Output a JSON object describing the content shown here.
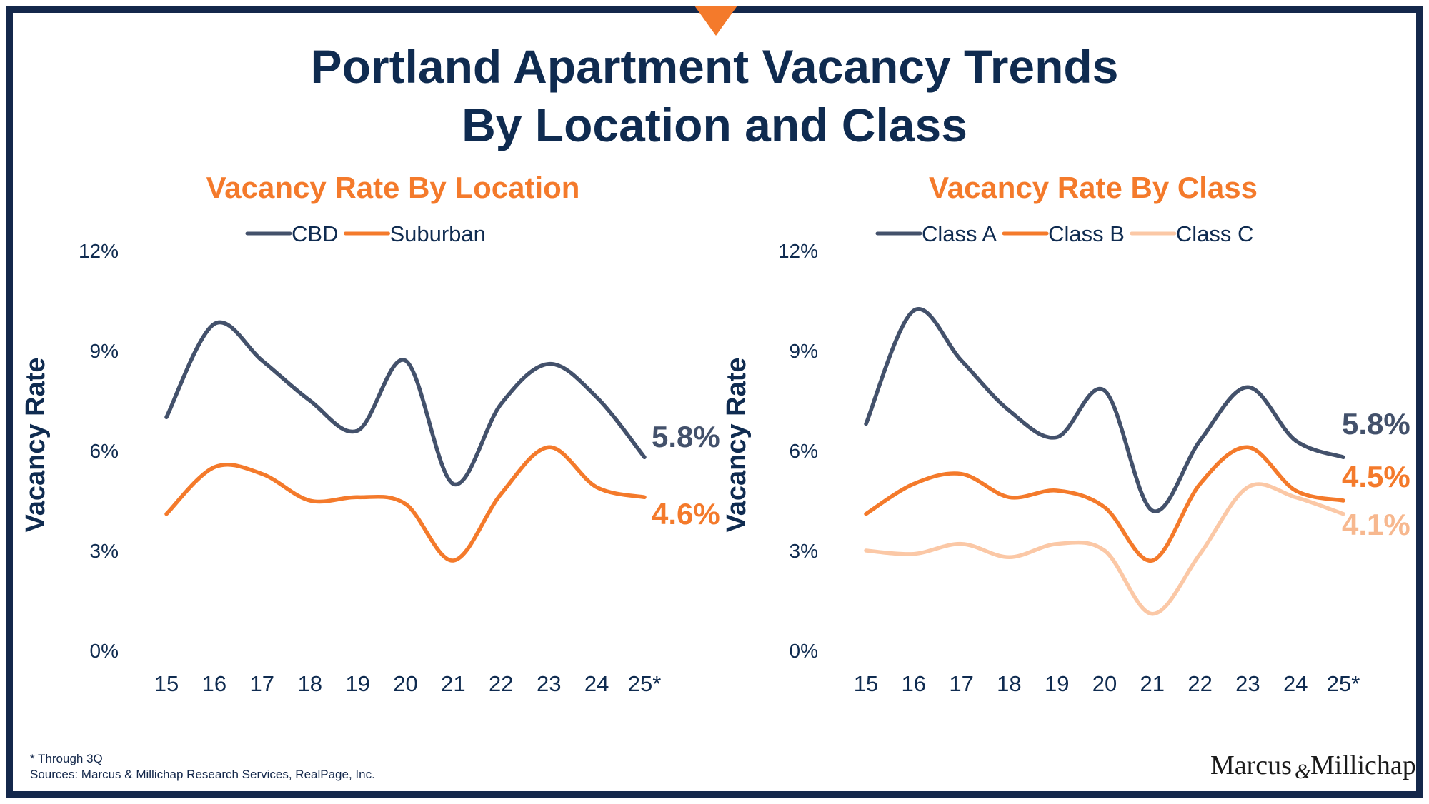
{
  "title": {
    "line1": "Portland Apartment Vacancy Trends",
    "line2": "By Location and Class"
  },
  "colors": {
    "navy": "#0f2b50",
    "orange": "#f47a2b",
    "peach": "#fbc8a6",
    "slate": "#43516b",
    "frame": "#14284b"
  },
  "footnotes": {
    "note": "* Through 3Q",
    "sources": "Sources: Marcus & Millichap Research Services, RealPage, Inc."
  },
  "logo": {
    "text_left": "Marcus",
    "text_amp": "&",
    "text_right": "Millichap"
  },
  "chart_data": [
    {
      "type": "line",
      "title": "Vacancy Rate By Location",
      "ylabel": "Vacancy Rate",
      "xlabel": "",
      "categories": [
        "15",
        "16",
        "17",
        "18",
        "19",
        "20",
        "21",
        "22",
        "23",
        "24",
        "25*"
      ],
      "ylim": [
        0,
        12
      ],
      "yticks": [
        "0%",
        "3%",
        "6%",
        "9%",
        "12%"
      ],
      "ytick_values": [
        0,
        3,
        6,
        9,
        12
      ],
      "grid": false,
      "legend": "top",
      "series": [
        {
          "name": "CBD",
          "color": "#43516b",
          "values": [
            7.0,
            9.8,
            8.7,
            7.5,
            6.6,
            8.7,
            5.0,
            7.4,
            8.6,
            7.6,
            5.8
          ],
          "end_label": "5.8%"
        },
        {
          "name": "Suburban",
          "color": "#f47a2b",
          "values": [
            4.1,
            5.5,
            5.3,
            4.5,
            4.6,
            4.4,
            2.7,
            4.7,
            6.1,
            4.9,
            4.6
          ],
          "end_label": "4.6%"
        }
      ]
    },
    {
      "type": "line",
      "title": "Vacancy Rate By Class",
      "ylabel": "Vacancy Rate",
      "xlabel": "",
      "categories": [
        "15",
        "16",
        "17",
        "18",
        "19",
        "20",
        "21",
        "22",
        "23",
        "24",
        "25*"
      ],
      "ylim": [
        0,
        12
      ],
      "yticks": [
        "0%",
        "3%",
        "6%",
        "9%",
        "12%"
      ],
      "ytick_values": [
        0,
        3,
        6,
        9,
        12
      ],
      "grid": false,
      "legend": "top",
      "series": [
        {
          "name": "Class A",
          "color": "#43516b",
          "values": [
            6.8,
            10.2,
            8.7,
            7.2,
            6.4,
            7.8,
            4.2,
            6.3,
            7.9,
            6.3,
            5.8
          ],
          "end_label": "5.8%"
        },
        {
          "name": "Class B",
          "color": "#f47a2b",
          "values": [
            4.1,
            5.0,
            5.3,
            4.6,
            4.8,
            4.3,
            2.7,
            5.0,
            6.1,
            4.8,
            4.5
          ],
          "end_label": "4.5%"
        },
        {
          "name": "Class C",
          "color": "#fbc8a6",
          "values": [
            3.0,
            2.9,
            3.2,
            2.8,
            3.2,
            3.0,
            1.1,
            2.9,
            4.9,
            4.6,
            4.1
          ],
          "end_label": "4.1%"
        }
      ]
    }
  ]
}
